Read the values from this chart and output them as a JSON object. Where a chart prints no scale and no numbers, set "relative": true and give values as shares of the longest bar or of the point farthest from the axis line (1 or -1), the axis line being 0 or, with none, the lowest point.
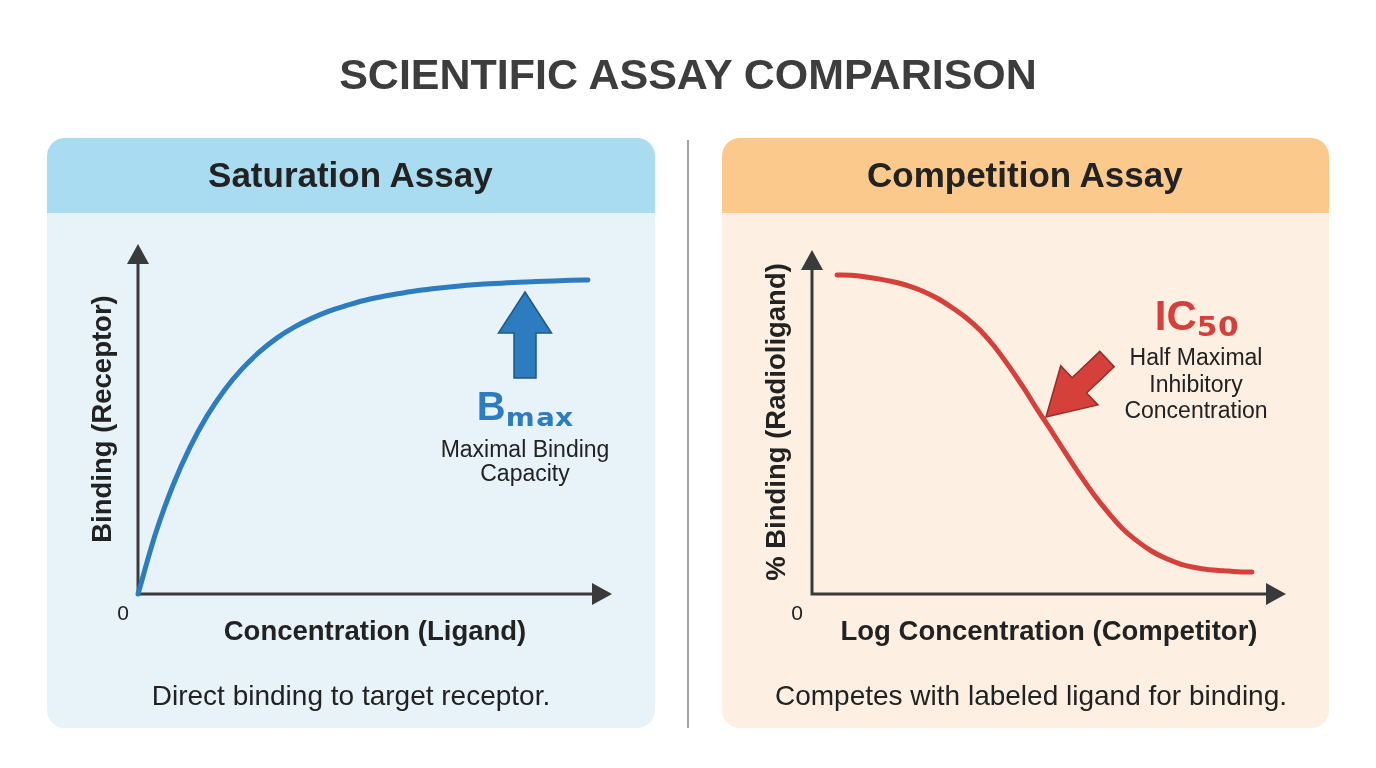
{
  "chart_data": [
    {
      "type": "line",
      "title": "SCIENTIFIC ASSAY COMPARISON",
      "subtitle": "Saturation Assay",
      "xlabel": "Concentration (Ligand)",
      "ylabel": "Binding (Receptor)",
      "relative": true,
      "marker": "none",
      "categories": [
        null,
        null,
        null,
        null,
        null,
        null,
        null,
        null,
        null,
        null,
        null,
        null,
        null,
        null,
        null,
        null,
        null,
        null,
        null,
        null,
        null,
        null,
        null,
        null,
        null,
        null,
        null
      ],
      "values": [
        0,
        0.19,
        0.343,
        0.467,
        0.568,
        0.65,
        0.716,
        0.77,
        0.814,
        0.849,
        0.877,
        0.9,
        0.918,
        0.934,
        0.946,
        0.956,
        0.965,
        0.972,
        0.978,
        0.983,
        0.987,
        0.99,
        0.993,
        0.995,
        0.997,
        0.999,
        1
      ],
      "color": "#2d7cc0",
      "annotations": [
        "0",
        "Bₘₐₓ",
        "Maximal Binding Capacity",
        "Direct binding to target receptor."
      ]
    },
    {
      "type": "line",
      "subtitle": "Competition Assay",
      "xlabel": "Log Concentration (Competitor)",
      "ylabel": "% Binding (Radioligand)",
      "relative": true,
      "marker": "none",
      "categories": [
        null,
        null,
        null,
        null,
        null,
        null,
        null,
        null,
        null,
        null,
        null,
        null,
        null,
        null,
        null,
        null,
        null,
        null,
        null,
        null,
        null,
        null,
        null,
        null,
        null,
        null,
        null,
        null,
        null,
        null
      ],
      "values": [
        1,
        0.999,
        0.994,
        0.987,
        0.978,
        0.966,
        0.949,
        0.927,
        0.899,
        0.867,
        0.827,
        0.776,
        0.715,
        0.649,
        0.578,
        0.51,
        0.44,
        0.372,
        0.309,
        0.253,
        0.203,
        0.165,
        0.134,
        0.111,
        0.094,
        0.083,
        0.076,
        0.073,
        0.07,
        0.069
      ],
      "color": "#d5403b",
      "annotations": [
        "0",
        "IC₅₀",
        "Half Maximal Inhibitory Concentration",
        "Competes with labeled ligand for binding."
      ]
    }
  ]
}
